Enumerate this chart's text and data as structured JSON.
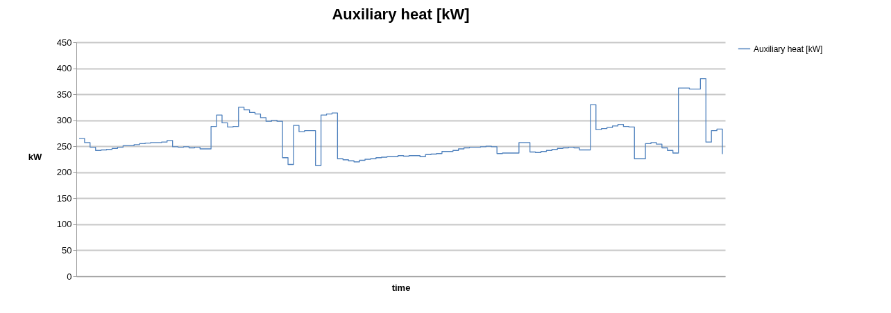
{
  "chart_data": {
    "type": "step",
    "title": "Auxiliary heat [kW]",
    "xlabel": "time",
    "ylabel": "kW",
    "ylim": [
      0,
      450
    ],
    "yticks": [
      0,
      50,
      100,
      150,
      200,
      250,
      300,
      350,
      400,
      450
    ],
    "grid": "y",
    "legend": "right",
    "categories": [
      null,
      null,
      null,
      null,
      null,
      null,
      null,
      null,
      null,
      null,
      null,
      null,
      null,
      null,
      null,
      null,
      null,
      null,
      null,
      null,
      null,
      null,
      null,
      null,
      null,
      null,
      null,
      null,
      null,
      null,
      null,
      null,
      null,
      null,
      null,
      null,
      null,
      null,
      null,
      null,
      null,
      null,
      null,
      null,
      null,
      null,
      null,
      null,
      null,
      null,
      null,
      null,
      null,
      null,
      null,
      null,
      null,
      null,
      null,
      null,
      null,
      null,
      null,
      null,
      null,
      null,
      null,
      null,
      null,
      null,
      null,
      null,
      null,
      null,
      null,
      null,
      null,
      null,
      null,
      null,
      null,
      null,
      null,
      null,
      null,
      null,
      null,
      null,
      null,
      null,
      null,
      null,
      null,
      null,
      null,
      null,
      null,
      null,
      null,
      null,
      null,
      null,
      null,
      null,
      null,
      null,
      null,
      null,
      null,
      null,
      null,
      null,
      null,
      null,
      null,
      null,
      null,
      null
    ],
    "series": [
      {
        "name": "Auxiliary heat [kW]",
        "color": "#4f81bd",
        "values": [
          265,
          257,
          248,
          242,
          243,
          244,
          246,
          248,
          251,
          251,
          253,
          255,
          256,
          257,
          257,
          258,
          261,
          249,
          248,
          249,
          247,
          248,
          245,
          245,
          288,
          310,
          295,
          287,
          288,
          325,
          320,
          315,
          312,
          305,
          298,
          300,
          298,
          228,
          215,
          290,
          278,
          280,
          280,
          213,
          310,
          312,
          314,
          226,
          224,
          222,
          220,
          223,
          225,
          226,
          228,
          229,
          230,
          230,
          232,
          231,
          232,
          232,
          230,
          234,
          235,
          236,
          240,
          240,
          242,
          245,
          247,
          248,
          248,
          249,
          250,
          249,
          236,
          237,
          237,
          237,
          257,
          257,
          239,
          238,
          240,
          242,
          244,
          246,
          247,
          248,
          247,
          243,
          243,
          330,
          282,
          284,
          286,
          289,
          292,
          288,
          287,
          226,
          226,
          255,
          257,
          254,
          247,
          242,
          237,
          362,
          362,
          360,
          360,
          380,
          258,
          280,
          283,
          235
        ]
      }
    ]
  }
}
